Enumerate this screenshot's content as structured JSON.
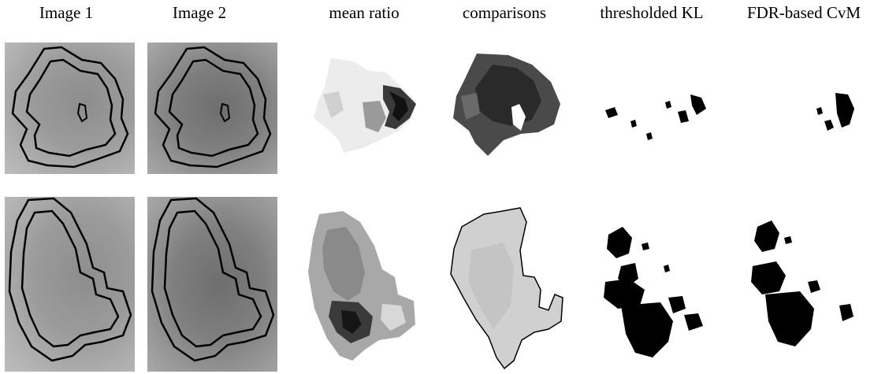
{
  "columns": {
    "image1": "Image 1",
    "image2": "Image 2",
    "mean_ratio": "mean ratio",
    "comparisons": "comparisons",
    "thresholded_kl": "thresholded KL",
    "fdr_cvm": "FDR-based CvM"
  }
}
